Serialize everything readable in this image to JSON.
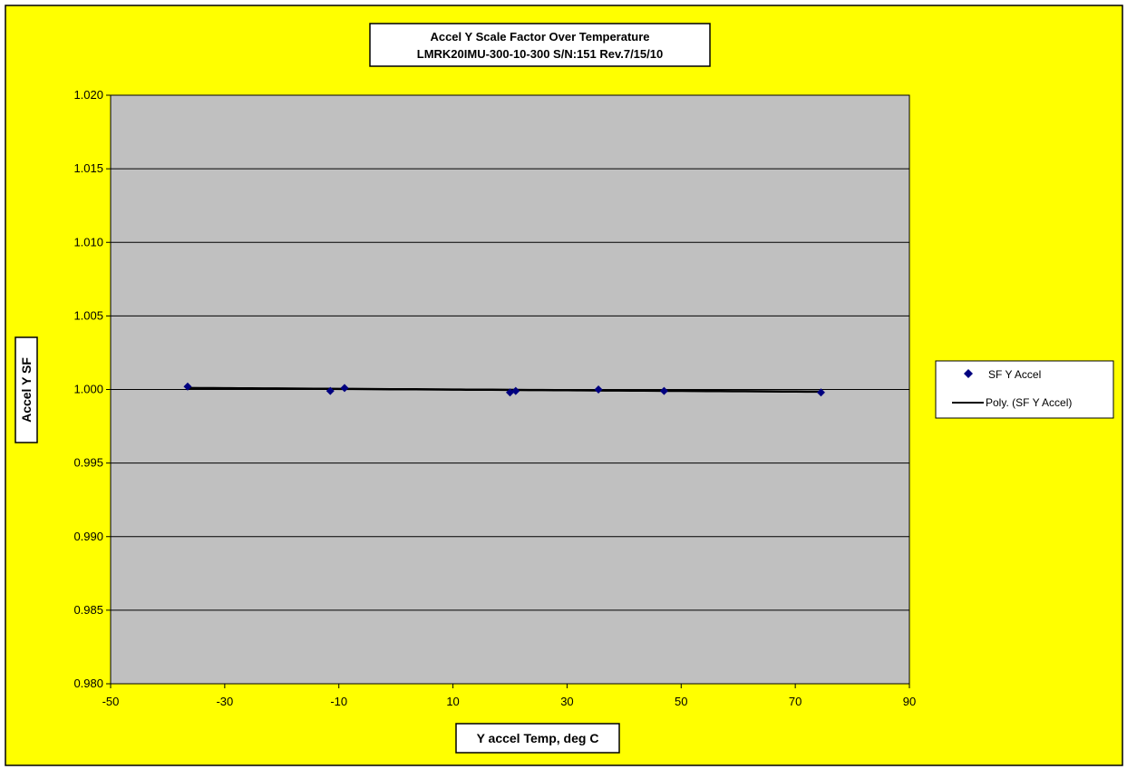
{
  "colors": {
    "chart_background": "#ffff00",
    "plot_area": "#c0c0c0",
    "gridline": "#000000",
    "marker": "#000080",
    "trendline": "#000000"
  },
  "chart_data": {
    "type": "scatter",
    "title_line1": "Accel Y Scale Factor Over Temperature",
    "title_line2": "LMRK20IMU-300-10-300 S/N:151 Rev.7/15/10",
    "xlabel": "Y accel Temp, deg C",
    "ylabel": "Accel Y SF",
    "xlim": [
      -50,
      90
    ],
    "ylim": [
      0.98,
      1.02
    ],
    "xticks": [
      "-50",
      "-30",
      "-10",
      "10",
      "30",
      "50",
      "70",
      "90"
    ],
    "yticks": [
      "0.980",
      "0.985",
      "0.990",
      "0.995",
      "1.000",
      "1.005",
      "1.010",
      "1.015",
      "1.020"
    ],
    "grid": "horizontal major gridlines",
    "legend_position": "right",
    "series": [
      {
        "name": "SF Y Accel",
        "marker": "diamond",
        "x": [
          -36.5,
          -11.5,
          -9,
          20,
          21,
          35.5,
          47,
          74.5
        ],
        "y": [
          1.0002,
          0.9999,
          1.0001,
          0.9998,
          0.9999,
          1.0,
          0.9999,
          0.9998
        ]
      }
    ],
    "trendline": {
      "name": "Poly. (SF Y Accel)",
      "x_range": [
        -36.5,
        74.5
      ],
      "y_start": 1.0001,
      "y_end": 0.99985
    }
  }
}
